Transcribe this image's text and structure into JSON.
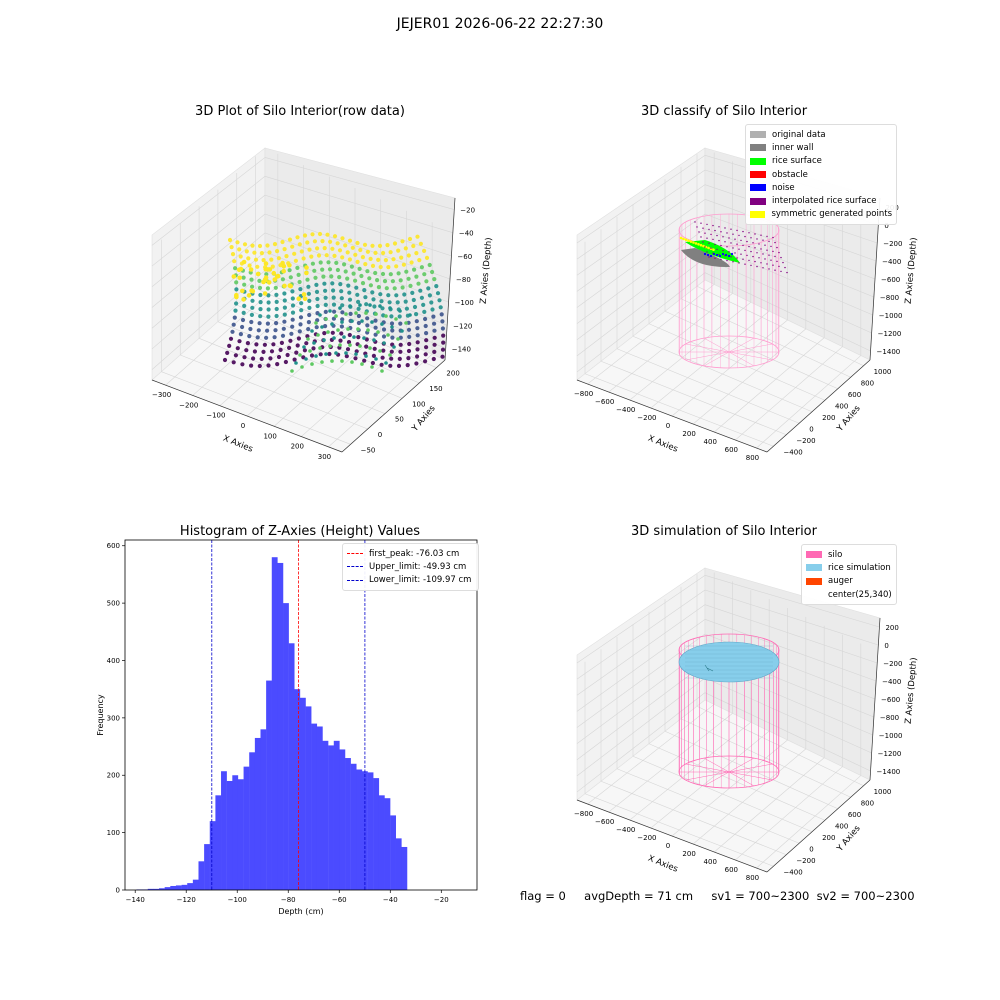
{
  "figure": {
    "suptitle": "JEJER01 2026-06-22 22:27:30",
    "footer": {
      "flag": "flag = 0",
      "avg_depth": "avgDepth = 71 cm",
      "sv1": "sv1 = 700~2300",
      "sv2": "sv2 = 700~2300"
    }
  },
  "panels": {
    "raw": {
      "title": "3D Plot of Silo Interior(row data)",
      "xlabel": "X Axies",
      "ylabel": "Y Axies",
      "zlabel": "Z Axies (Depth)",
      "x_ticks": [
        "−300",
        "−200",
        "−100",
        "0",
        "100",
        "200",
        "300"
      ],
      "y_ticks": [
        "−50",
        "0",
        "50",
        "100",
        "150",
        "200"
      ],
      "z_ticks": [
        "−20",
        "−40",
        "−60",
        "−80",
        "−100",
        "−120",
        "−140"
      ],
      "colormap": [
        "#440154",
        "#3b528b",
        "#21918c",
        "#5ec962",
        "#fde725"
      ]
    },
    "classify": {
      "title": "3D classify of Silo Interior",
      "xlabel": "X Axies",
      "ylabel": "Y Axies",
      "zlabel": "Z Axies (Depth)",
      "x_ticks": [
        "−800",
        "−600",
        "−400",
        "−200",
        "0",
        "200",
        "400",
        "600",
        "800"
      ],
      "y_ticks": [
        "−400",
        "−200",
        "0",
        "200",
        "400",
        "600",
        "800",
        "1000"
      ],
      "z_ticks": [
        "200",
        "0",
        "−200",
        "−400",
        "−600",
        "−800",
        "−1000",
        "−1200",
        "−1400"
      ],
      "legend": [
        {
          "label": "original data",
          "color": "#b0b0b0"
        },
        {
          "label": "inner wall",
          "color": "#808080"
        },
        {
          "label": "rice surface",
          "color": "#00ff00"
        },
        {
          "label": "obstacle",
          "color": "#ff0000"
        },
        {
          "label": "noise",
          "color": "#0000ff"
        },
        {
          "label": "interpolated rice surface",
          "color": "#800080"
        },
        {
          "label": "symmetric generated points",
          "color": "#ffff00"
        }
      ]
    },
    "simulation": {
      "title": "3D simulation of Silo Interior",
      "xlabel": "X Axies",
      "ylabel": "Y Axies",
      "zlabel": "Z Axies (Depth)",
      "x_ticks": [
        "−800",
        "−600",
        "−400",
        "−200",
        "0",
        "200",
        "400",
        "600",
        "800"
      ],
      "y_ticks": [
        "−400",
        "−200",
        "0",
        "200",
        "400",
        "600",
        "800",
        "1000"
      ],
      "z_ticks": [
        "200",
        "0",
        "−200",
        "−400",
        "−600",
        "−800",
        "−1000",
        "−1200",
        "−1400"
      ],
      "legend": [
        {
          "label": "silo",
          "color": "#ff69b4"
        },
        {
          "label": "rice simulation",
          "color": "#87ceeb"
        },
        {
          "label": "auger",
          "color": "#ff4500"
        },
        {
          "label": "center(25,340)",
          "color": ""
        }
      ]
    }
  },
  "chart_data": [
    {
      "type": "bar",
      "title": "Histogram of Z-Axies (Height) Values",
      "xlabel": "Depth (cm)",
      "ylabel": "Frequency",
      "xlim": [
        -144,
        -6
      ],
      "ylim": [
        0,
        610
      ],
      "x_ticks": [
        -140,
        -120,
        -100,
        -80,
        -60,
        -40,
        -20
      ],
      "x_tick_labels": [
        "−140",
        "−120",
        "−100",
        "−80",
        "−60",
        "−40",
        "−20"
      ],
      "y_ticks": [
        0,
        100,
        200,
        300,
        400,
        500,
        600
      ],
      "bar_color": "#4b4bff",
      "bins": {
        "start": -139.5,
        "width": 2.21,
        "values": [
          1,
          1,
          2,
          2,
          3,
          5,
          7,
          8,
          9,
          12,
          18,
          50,
          80,
          120,
          165,
          207,
          190,
          200,
          193,
          215,
          240,
          265,
          280,
          365,
          580,
          570,
          500,
          430,
          350,
          335,
          320,
          290,
          285,
          260,
          252,
          260,
          245,
          230,
          220,
          210,
          207,
          205,
          195,
          165,
          160,
          130,
          90,
          75
        ]
      },
      "vlines": [
        {
          "x": -76.03,
          "color": "#ff0000",
          "label": "first_peak: -76.03 cm"
        },
        {
          "x": -49.93,
          "color": "#0000cc",
          "label": "Upper_limit: -49.93 cm"
        },
        {
          "x": -109.97,
          "color": "#0000cc",
          "label": "Lower_limit: -109.97 cm"
        }
      ],
      "legend_position": "upper right",
      "grid": false
    }
  ]
}
